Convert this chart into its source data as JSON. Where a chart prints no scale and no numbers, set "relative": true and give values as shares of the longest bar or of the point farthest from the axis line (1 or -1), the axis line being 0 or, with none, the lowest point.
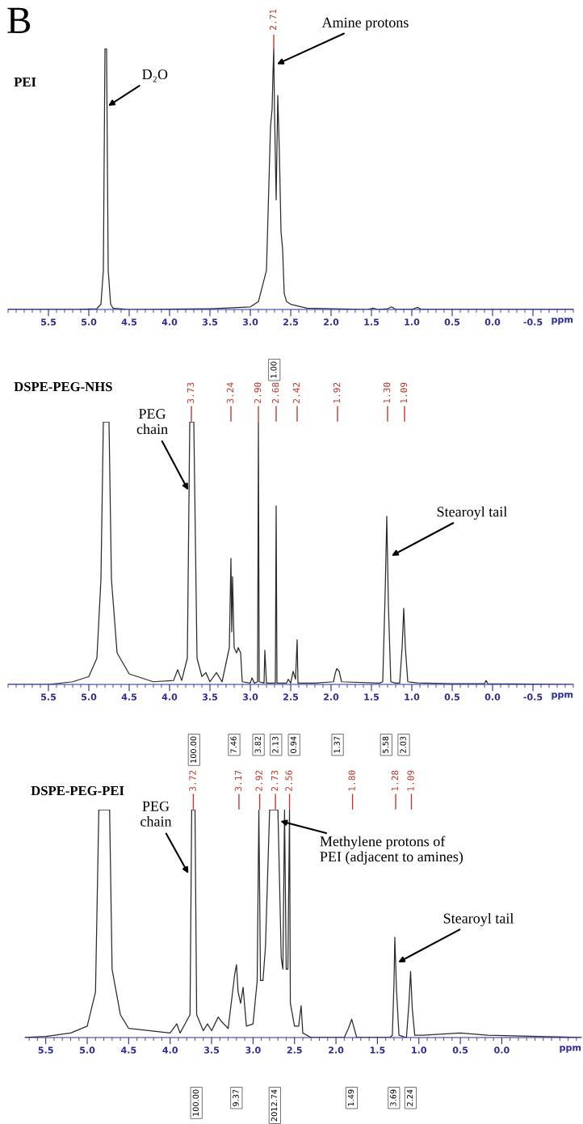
{
  "chart_data": [
    {
      "type": "line",
      "title": "PEI",
      "relative": true,
      "xlabel": "ppm",
      "xlim": [
        6.0,
        -1.0
      ],
      "xticks": [
        5.5,
        {
          "value": 5,
          "label": "5.0"
        },
        4.5,
        {
          "value": 4,
          "label": "4.0"
        },
        3.5,
        {
          "value": 3,
          "label": "3.0"
        },
        2.5,
        {
          "value": 2,
          "label": "2.0"
        },
        1.5,
        {
          "value": 1,
          "label": "1.0"
        },
        0.5,
        {
          "value": 0,
          "label": "0.0"
        },
        -0.5
      ],
      "series": [
        {
          "color": "#2b2b2b",
          "x": [
            6.0,
            5.2,
            4.9,
            4.85,
            4.82,
            4.8,
            4.78,
            4.76,
            4.73,
            4.7,
            4.5,
            3.5,
            3.0,
            2.9,
            2.8,
            2.75,
            2.73,
            2.72,
            2.71,
            2.7,
            2.68,
            2.66,
            2.64,
            2.62,
            2.6,
            2.58,
            2.55,
            2.5,
            2.3,
            1.55,
            1.48,
            1.42,
            1.3,
            1.25,
            1.2,
            1.0,
            0.93,
            0.88,
            0.5,
            -1.0
          ],
          "values": [
            0,
            0.0,
            0.003,
            0.02,
            0.15,
            1.0,
            1.0,
            0.15,
            0.02,
            0.005,
            0.0,
            0.003,
            0.01,
            0.03,
            0.15,
            0.7,
            0.77,
            0.9,
            1.0,
            0.75,
            0.42,
            0.82,
            0.6,
            0.3,
            0.23,
            0.06,
            0.03,
            0.02,
            0.005,
            0.0,
            0.005,
            0.0,
            0.003,
            0.01,
            0.0,
            0.0,
            0.008,
            0.0,
            0.0,
            0.0
          ]
        }
      ],
      "annotations": [
        "B",
        {
          "text": "D₂O",
          "x": 4.76,
          "y": 0.78
        },
        {
          "text": "Amine protons",
          "x": 2.67,
          "y": 0.94
        },
        {
          "text": "2.71",
          "x": 2.71,
          "y": 1.0
        },
        "1.00"
      ]
    },
    {
      "type": "line",
      "title": "DSPE-PEG-NHS",
      "relative": true,
      "xlabel": "ppm",
      "xlim": [
        6.0,
        -1.0
      ],
      "xticks": [
        5.5,
        {
          "value": 5,
          "label": "5.0"
        },
        4.5,
        {
          "value": 4,
          "label": "4.0"
        },
        3.5,
        {
          "value": 3,
          "label": "3.0"
        },
        2.5,
        {
          "value": 2,
          "label": "2.0"
        },
        1.5,
        {
          "value": 1,
          "label": "1.0"
        },
        0.5,
        {
          "value": 0,
          "label": "0.0"
        },
        -0.5
      ],
      "x2lim": [
        3.73,
        1.09
      ],
      "x2ticks": [
        3.73,
        3.24,
        {
          "value": 2.9,
          "label": "2.90"
        },
        2.68,
        2.42,
        1.92,
        {
          "value": 1.3,
          "label": "1.30"
        },
        1.09
      ],
      "series": [
        {
          "color": "#2b2b2b",
          "x": [
            6.0,
            5.5,
            5.2,
            5.0,
            4.9,
            4.85,
            4.82,
            4.75,
            4.72,
            4.65,
            4.5,
            4.2,
            3.95,
            3.9,
            3.85,
            3.78,
            3.75,
            3.7,
            3.66,
            3.6,
            3.55,
            3.5,
            3.42,
            3.35,
            3.26,
            3.24,
            3.23,
            3.22,
            3.2,
            3.17,
            3.15,
            3.12,
            3.1,
            3.0,
            2.98,
            2.95,
            2.91,
            2.9,
            2.89,
            2.83,
            2.82,
            2.8,
            2.69,
            2.68,
            2.67,
            2.55,
            2.53,
            2.5,
            2.47,
            2.44,
            2.42,
            2.41,
            2.2,
            1.97,
            1.95,
            1.93,
            1.9,
            1.87,
            1.4,
            1.36,
            1.33,
            1.31,
            1.29,
            1.26,
            1.2,
            1.15,
            1.12,
            1.1,
            1.08,
            1.05,
            0.93,
            0.5,
            0.1,
            0.08,
            0.06,
            -1.0
          ],
          "values": [
            0,
            0.0,
            0.01,
            0.03,
            0.1,
            0.4,
            1.0,
            1.0,
            0.4,
            0.12,
            0.04,
            0.01,
            0.015,
            0.056,
            0.015,
            0.1,
            1.0,
            1.0,
            0.1,
            0.03,
            0.045,
            0.01,
            0.045,
            0.01,
            0.14,
            0.48,
            0.2,
            0.41,
            0.14,
            0.12,
            0.14,
            0.12,
            0.01,
            0.005,
            0.025,
            0.005,
            0.01,
            1.0,
            0.01,
            0.005,
            0.13,
            0.005,
            0.005,
            0.68,
            0.005,
            0.005,
            0.02,
            0.005,
            0.05,
            0.02,
            0.17,
            0.005,
            0.005,
            0.01,
            0.04,
            0.06,
            0.05,
            0.01,
            0.005,
            0.01,
            0.35,
            0.64,
            0.3,
            0.01,
            0.005,
            0.005,
            0.14,
            0.29,
            0.14,
            0.01,
            0.006,
            0.003,
            0.003,
            0.015,
            0.003,
            0.0
          ]
        }
      ],
      "annotations": [
        {
          "text": "PEG\nchain",
          "x": 3.77,
          "y": 0.74
        },
        {
          "text": "Stearoyl tail",
          "x": 1.25,
          "y": 0.49
        },
        "100.00",
        "7.46",
        "3.82",
        "2.13",
        "0.94",
        "1.37",
        "5.58",
        "2.03"
      ]
    },
    {
      "type": "line",
      "title": "DSPE-PEG-PEI",
      "relative": true,
      "xlabel": "ppm",
      "xlim": [
        5.75,
        -0.96
      ],
      "xticks": [
        5.5,
        {
          "value": 5,
          "label": "5.0"
        },
        4.5,
        {
          "value": 4,
          "label": "4.0"
        },
        3.5,
        {
          "value": 3,
          "label": "3.0"
        },
        2.5,
        {
          "value": 2,
          "label": "2.0"
        },
        1.5,
        {
          "value": 1,
          "label": "1.0"
        },
        0.5,
        {
          "value": 0,
          "label": "0.0"
        }
      ],
      "x2lim": [
        3.72,
        1.09
      ],
      "x2ticks": [
        3.72,
        3.17,
        2.92,
        2.73,
        2.56,
        {
          "value": 1.8,
          "label": "1.80"
        },
        1.28,
        1.09
      ],
      "series": [
        {
          "color": "#2b2b2b",
          "x": [
            5.75,
            5.5,
            5.2,
            5.0,
            4.9,
            4.86,
            4.73,
            4.7,
            4.6,
            4.5,
            4.0,
            3.92,
            3.88,
            3.76,
            3.74,
            3.7,
            3.68,
            3.6,
            3.55,
            3.5,
            3.42,
            3.38,
            3.3,
            3.22,
            3.2,
            3.18,
            3.15,
            3.12,
            3.08,
            3.0,
            2.95,
            2.93,
            2.91,
            2.88,
            2.85,
            2.8,
            2.7,
            2.66,
            2.64,
            2.62,
            2.6,
            2.58,
            2.56,
            2.55,
            2.5,
            2.45,
            2.42,
            2.4,
            2.3,
            1.9,
            1.85,
            1.81,
            1.78,
            1.75,
            1.35,
            1.32,
            1.3,
            1.29,
            1.27,
            1.24,
            1.15,
            1.12,
            1.1,
            1.08,
            1.05,
            0.95,
            0.5,
            0.17,
            -0.96
          ],
          "values": [
            0.0,
            0.005,
            0.02,
            0.05,
            0.2,
            1.0,
            1.0,
            0.3,
            0.1,
            0.04,
            0.02,
            0.06,
            0.02,
            0.1,
            1.0,
            1.0,
            0.1,
            0.03,
            0.06,
            0.03,
            0.09,
            0.07,
            0.04,
            0.28,
            0.32,
            0.2,
            0.15,
            0.22,
            0.05,
            0.06,
            0.25,
            1.0,
            0.25,
            0.25,
            0.4,
            1.0,
            1.0,
            0.35,
            0.3,
            1.0,
            0.3,
            0.3,
            1.0,
            0.15,
            0.05,
            0.05,
            0.14,
            0.02,
            0.0,
            0.0,
            0.04,
            0.08,
            0.04,
            0.0,
            0.0,
            0.01,
            0.24,
            0.44,
            0.21,
            0.01,
            0.0,
            0.15,
            0.29,
            0.13,
            0.01,
            0.01,
            0.02,
            0.01,
            0.0
          ]
        }
      ],
      "annotations": [
        {
          "text": "PEG\nchain",
          "x": 3.78,
          "y": 0.72
        },
        {
          "text": "Methylene protons of\nPEI (adjacent to amines)",
          "x": 2.67,
          "y": 0.95
        },
        {
          "text": "Stearoyl tail",
          "x": 1.25,
          "y": 0.33
        },
        "100.00",
        "9.37",
        "2012.74",
        "1.49",
        "3.69",
        "2.24"
      ]
    }
  ]
}
